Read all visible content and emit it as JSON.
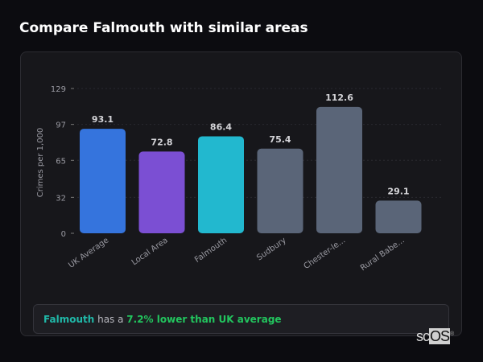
{
  "title": "Compare Falmouth with similar areas",
  "chart_data": {
    "type": "bar",
    "categories": [
      "UK Average",
      "Local Area",
      "Falmouth",
      "Sudbury",
      "Chester-le...",
      "Rural Babe..."
    ],
    "values": [
      93.1,
      72.8,
      86.4,
      75.4,
      112.6,
      29.1
    ],
    "colors": [
      "#3574dd",
      "#7b4fd3",
      "#22b8cf",
      "#5a6578",
      "#5a6578",
      "#5a6578"
    ],
    "ylabel": "Crimes per 1,000",
    "xlabel": "",
    "yticks": [
      0,
      32,
      65,
      97,
      129
    ],
    "ylim": [
      0,
      129
    ],
    "grid": true,
    "data_labels": true
  },
  "note": {
    "area": "Falmouth",
    "middle": " has a ",
    "stat": "7.2% lower than UK average"
  },
  "logo": {
    "text_a": "sc",
    "text_b": "OS",
    "mark": "®"
  }
}
